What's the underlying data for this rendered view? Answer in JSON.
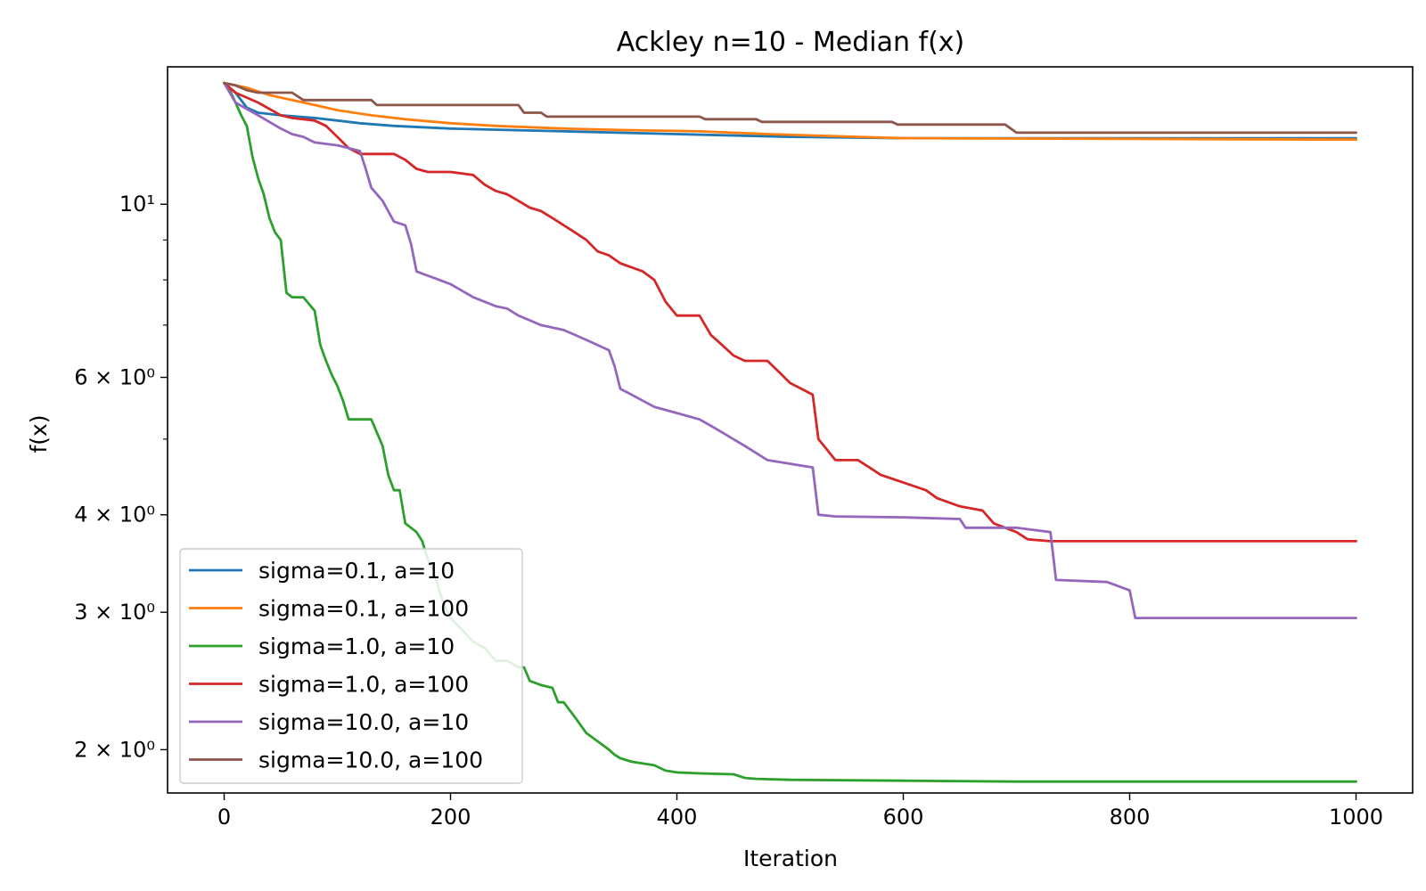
{
  "chart_data": {
    "type": "line",
    "title": "Ackley n=10 - Median f(x)",
    "xlabel": "Iteration",
    "ylabel": "f(x)",
    "yscale": "log",
    "xlim": [
      -50,
      1050
    ],
    "ylim": [
      1.76,
      15.0
    ],
    "x_ticks": [
      0,
      200,
      400,
      600,
      800,
      1000
    ],
    "x_tick_labels": [
      "0",
      "200",
      "400",
      "600",
      "800",
      "1000"
    ],
    "y_major_ticks": [
      2,
      3,
      4,
      6,
      10
    ],
    "y_major_tick_labels": [
      "2 × 10⁰",
      "3 × 10⁰",
      "4 × 10⁰",
      "6 × 10⁰",
      "10¹"
    ],
    "y_minor_ticks": [
      5,
      7,
      8,
      9
    ],
    "grid": false,
    "legend_position": "lower-left",
    "series": [
      {
        "name": "sigma=0.1, a=10",
        "color": "#1f77b4",
        "x": [
          0,
          10,
          20,
          30,
          50,
          80,
          100,
          120,
          150,
          200,
          250,
          300,
          400,
          500,
          600,
          1000
        ],
        "y": [
          14.3,
          13.9,
          13.3,
          13.1,
          13.0,
          12.9,
          12.8,
          12.7,
          12.6,
          12.5,
          12.45,
          12.4,
          12.3,
          12.2,
          12.15,
          12.15
        ]
      },
      {
        "name": "sigma=0.1, a=100",
        "color": "#ff7f0e",
        "x": [
          0,
          20,
          40,
          60,
          80,
          100,
          130,
          160,
          200,
          240,
          300,
          350,
          420,
          480,
          600,
          1000
        ],
        "y": [
          14.3,
          14.1,
          13.8,
          13.6,
          13.4,
          13.2,
          13.0,
          12.85,
          12.7,
          12.6,
          12.5,
          12.45,
          12.4,
          12.3,
          12.15,
          12.1
        ]
      },
      {
        "name": "sigma=1.0, a=10",
        "color": "#2ca02c",
        "x": [
          0,
          5,
          10,
          15,
          20,
          25,
          30,
          35,
          40,
          45,
          50,
          55,
          60,
          65,
          70,
          80,
          85,
          90,
          95,
          100,
          105,
          110,
          115,
          120,
          130,
          140,
          145,
          150,
          155,
          160,
          165,
          170,
          175,
          180,
          185,
          190,
          195,
          200,
          210,
          220,
          230,
          240,
          250,
          260,
          265,
          270,
          280,
          290,
          295,
          300,
          310,
          315,
          320,
          330,
          340,
          345,
          350,
          360,
          370,
          380,
          390,
          400,
          420,
          450,
          460,
          470,
          500,
          600,
          700,
          1000
        ],
        "y": [
          14.3,
          14.0,
          13.5,
          13.0,
          12.6,
          11.5,
          10.8,
          10.3,
          9.6,
          9.2,
          9.0,
          7.7,
          7.6,
          7.6,
          7.6,
          7.3,
          6.6,
          6.3,
          6.05,
          5.85,
          5.6,
          5.3,
          5.3,
          5.3,
          5.3,
          4.9,
          4.5,
          4.3,
          4.3,
          3.9,
          3.85,
          3.8,
          3.7,
          3.5,
          3.4,
          3.2,
          3.05,
          2.95,
          2.85,
          2.75,
          2.7,
          2.6,
          2.6,
          2.55,
          2.55,
          2.45,
          2.42,
          2.4,
          2.3,
          2.3,
          2.2,
          2.15,
          2.1,
          2.05,
          2.0,
          1.97,
          1.95,
          1.93,
          1.92,
          1.91,
          1.88,
          1.87,
          1.865,
          1.86,
          1.84,
          1.835,
          1.83,
          1.825,
          1.82,
          1.82
        ]
      },
      {
        "name": "sigma=1.0, a=100",
        "color": "#d62728",
        "x": [
          0,
          10,
          30,
          50,
          60,
          80,
          90,
          100,
          110,
          120,
          150,
          160,
          170,
          180,
          200,
          220,
          230,
          240,
          250,
          260,
          270,
          280,
          290,
          300,
          310,
          320,
          330,
          340,
          350,
          360,
          370,
          380,
          390,
          400,
          420,
          430,
          440,
          450,
          460,
          470,
          480,
          490,
          500,
          510,
          520,
          525,
          530,
          540,
          560,
          570,
          580,
          600,
          610,
          620,
          630,
          650,
          670,
          680,
          690,
          700,
          710,
          730,
          1000
        ],
        "y": [
          14.3,
          13.9,
          13.5,
          13.0,
          12.9,
          12.8,
          12.6,
          12.2,
          11.8,
          11.6,
          11.6,
          11.4,
          11.1,
          11.0,
          11.0,
          10.9,
          10.6,
          10.4,
          10.3,
          10.1,
          9.9,
          9.8,
          9.6,
          9.4,
          9.2,
          9.0,
          8.7,
          8.6,
          8.4,
          8.3,
          8.2,
          8.0,
          7.5,
          7.2,
          7.2,
          6.8,
          6.6,
          6.4,
          6.3,
          6.3,
          6.3,
          6.1,
          5.9,
          5.8,
          5.7,
          5.0,
          4.9,
          4.7,
          4.7,
          4.6,
          4.5,
          4.4,
          4.35,
          4.3,
          4.2,
          4.1,
          4.05,
          3.9,
          3.85,
          3.8,
          3.72,
          3.7,
          3.7
        ]
      },
      {
        "name": "sigma=10.0, a=10",
        "color": "#9467bd",
        "x": [
          0,
          10,
          30,
          50,
          60,
          70,
          80,
          100,
          120,
          125,
          130,
          140,
          150,
          160,
          165,
          170,
          180,
          190,
          200,
          210,
          220,
          230,
          240,
          250,
          260,
          270,
          280,
          290,
          300,
          310,
          320,
          330,
          340,
          345,
          350,
          360,
          370,
          380,
          390,
          400,
          410,
          420,
          430,
          440,
          450,
          460,
          470,
          480,
          500,
          520,
          525,
          540,
          600,
          650,
          655,
          700,
          730,
          735,
          780,
          800,
          805,
          1000
        ],
        "y": [
          14.3,
          13.5,
          13.0,
          12.5,
          12.3,
          12.2,
          12.0,
          11.9,
          11.7,
          11.1,
          10.5,
          10.1,
          9.5,
          9.4,
          8.9,
          8.2,
          8.1,
          8.0,
          7.9,
          7.75,
          7.6,
          7.5,
          7.4,
          7.35,
          7.2,
          7.1,
          7.0,
          6.95,
          6.9,
          6.8,
          6.7,
          6.6,
          6.5,
          6.2,
          5.8,
          5.7,
          5.6,
          5.5,
          5.45,
          5.4,
          5.35,
          5.3,
          5.2,
          5.1,
          5.0,
          4.9,
          4.8,
          4.7,
          4.65,
          4.6,
          4.0,
          3.98,
          3.97,
          3.95,
          3.85,
          3.85,
          3.8,
          3.3,
          3.28,
          3.2,
          2.95,
          2.95
        ]
      },
      {
        "name": "sigma=10.0, a=100",
        "color": "#8c564b",
        "x": [
          0,
          10,
          20,
          30,
          60,
          70,
          80,
          130,
          135,
          260,
          265,
          280,
          285,
          420,
          425,
          470,
          475,
          590,
          595,
          690,
          700,
          1000
        ],
        "y": [
          14.3,
          14.2,
          14.0,
          13.9,
          13.9,
          13.6,
          13.6,
          13.6,
          13.4,
          13.4,
          13.1,
          13.1,
          12.95,
          12.95,
          12.85,
          12.85,
          12.75,
          12.75,
          12.65,
          12.65,
          12.35,
          12.35
        ]
      }
    ]
  }
}
